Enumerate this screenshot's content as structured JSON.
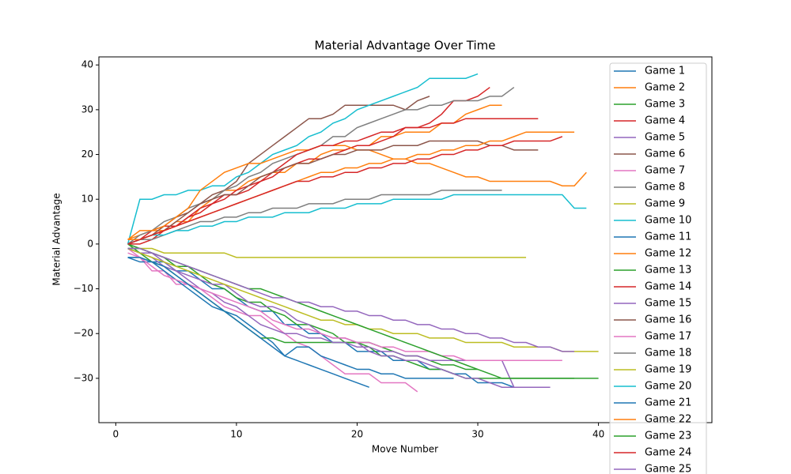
{
  "chart_data": {
    "type": "line",
    "title": "Material Advantage Over Time",
    "x_label": "Move Number",
    "y_label": "Material Advantage",
    "xlim": [
      -1.4,
      49.4
    ],
    "ylim": [
      -39.9,
      41.8
    ],
    "xticks": [
      0,
      10,
      20,
      30,
      40
    ],
    "yticks": [
      {
        "value": -30,
        "label": "−30"
      },
      {
        "value": -20,
        "label": "−20"
      },
      {
        "value": -10,
        "label": "−10"
      },
      0,
      10,
      20,
      30,
      40
    ],
    "legend": "upper right",
    "grid": false,
    "x": [
      1,
      2,
      3,
      4,
      5,
      6,
      7,
      8,
      9,
      10,
      11,
      12,
      13,
      14,
      15,
      16,
      17,
      18,
      19,
      20,
      21,
      22,
      23,
      24,
      25,
      26,
      27,
      28,
      29,
      30,
      31,
      32,
      33,
      34,
      35,
      36,
      37,
      38,
      39,
      40
    ],
    "series": [
      {
        "name": "Game 1",
        "color": "#1f77b4",
        "values": [
          -3,
          -3,
          -4,
          -4,
          -6,
          -6,
          -8,
          -10,
          -10,
          -12,
          -14,
          -15,
          -15,
          -18,
          -18,
          -20,
          -20,
          -22,
          -22,
          -24,
          -24,
          -24,
          -26,
          -26,
          -26,
          -28,
          -28,
          -29,
          -29,
          -31,
          -31,
          -31,
          -32,
          null,
          null,
          null,
          null,
          null,
          null,
          null
        ]
      },
      {
        "name": "Game 2",
        "color": "#ff7f0e",
        "values": [
          1,
          2,
          3,
          3,
          5,
          5,
          8,
          10,
          12,
          12,
          14,
          15,
          16,
          16,
          18,
          18,
          20,
          21,
          21,
          22,
          22,
          24,
          24,
          25,
          25,
          25,
          27,
          27,
          29,
          30,
          31,
          31,
          null,
          null,
          null,
          null,
          null,
          null,
          null,
          null
        ]
      },
      {
        "name": "Game 3",
        "color": "#2ca02c",
        "values": [
          0,
          -1,
          -2,
          -3,
          -5,
          -5,
          -7,
          -9,
          -10,
          -12,
          -13,
          -13,
          -15,
          -16,
          -18,
          -18,
          -19,
          -20,
          -22,
          -22,
          -23,
          -25,
          -25,
          -26,
          -27,
          -28,
          -28,
          -29,
          -30,
          -30,
          -30,
          -30,
          -30,
          -30,
          -30,
          -30,
          -30,
          -30,
          null,
          null
        ]
      },
      {
        "name": "Game 4",
        "color": "#d62728",
        "values": [
          0,
          1,
          3,
          4,
          4,
          6,
          8,
          9,
          11,
          11,
          12,
          14,
          15,
          17,
          18,
          19,
          19,
          20,
          21,
          22,
          22,
          23,
          24,
          26,
          26,
          27,
          29,
          32,
          32,
          33,
          35,
          null,
          null,
          null,
          null,
          null,
          null,
          null,
          null,
          null
        ]
      },
      {
        "name": "Game 5",
        "color": "#9467bd",
        "values": [
          -1,
          -2,
          -2,
          -4,
          -6,
          -7,
          -8,
          -9,
          -9,
          -11,
          -13,
          -14,
          -14,
          -15,
          -17,
          -18,
          -20,
          -21,
          -21,
          -22,
          -24,
          -25,
          -25,
          -26,
          -26,
          -27,
          -28,
          -29,
          -30,
          -30,
          -31,
          -32,
          -32,
          -32,
          -32,
          -32,
          null,
          null,
          null,
          null
        ]
      },
      {
        "name": "Game 6",
        "color": "#8c564b",
        "values": [
          1,
          1,
          2,
          4,
          6,
          7,
          9,
          11,
          12,
          14,
          18,
          20,
          22,
          24,
          26,
          28,
          28,
          29,
          31,
          31,
          31,
          31,
          31,
          30,
          32,
          33,
          null,
          null,
          null,
          null,
          null,
          null,
          null,
          null,
          null,
          null,
          null,
          null,
          null,
          null
        ]
      },
      {
        "name": "Game 7",
        "color": "#e377c2",
        "values": [
          -1,
          -3,
          -6,
          -6,
          -9,
          -9,
          -10,
          -12,
          -14,
          -15,
          -16,
          -16,
          -18,
          -20,
          -22,
          -23,
          -25,
          -27,
          -29,
          -29,
          -29,
          -31,
          -31,
          -31,
          -33,
          null,
          null,
          null,
          null,
          null,
          null,
          null,
          null,
          null,
          null,
          null,
          null,
          null,
          null,
          null
        ]
      },
      {
        "name": "Game 8",
        "color": "#7f7f7f",
        "values": [
          0,
          2,
          3,
          5,
          6,
          8,
          9,
          10,
          12,
          13,
          15,
          16,
          18,
          19,
          20,
          21,
          22,
          24,
          24,
          26,
          27,
          28,
          29,
          30,
          30,
          31,
          31,
          32,
          32,
          32,
          33,
          33,
          35,
          null,
          null,
          null,
          null,
          null,
          null,
          null
        ]
      },
      {
        "name": "Game 9",
        "color": "#bcbd22",
        "values": [
          -1,
          -1,
          -1,
          -2,
          -2,
          -2,
          -2,
          -2,
          -2,
          -3,
          -3,
          -3,
          -3,
          -3,
          -3,
          -3,
          -3,
          -3,
          -3,
          -3,
          -3,
          -3,
          -3,
          -3,
          -3,
          -3,
          -3,
          -3,
          -3,
          -3,
          -3,
          -3,
          -3,
          -3,
          null,
          null,
          null,
          null,
          null,
          null
        ]
      },
      {
        "name": "Game 10",
        "color": "#17becf",
        "values": [
          0,
          10,
          10,
          11,
          11,
          12,
          12,
          13,
          13,
          15,
          16,
          18,
          20,
          21,
          22,
          24,
          25,
          27,
          28,
          30,
          31,
          32,
          33,
          34,
          35,
          37,
          37,
          37,
          37,
          38,
          null,
          null,
          null,
          null,
          null,
          null,
          null,
          null,
          null,
          null
        ]
      },
      {
        "name": "Game 11",
        "color": "#1f77b4",
        "values": [
          -3,
          -4,
          -4,
          -6,
          -8,
          -10,
          -12,
          -14,
          -15,
          -16,
          -18,
          -20,
          -22,
          -25,
          -26,
          -27,
          -28,
          -29,
          -30,
          -31,
          -32,
          null,
          null,
          null,
          null,
          null,
          null,
          null,
          null,
          null,
          null,
          null,
          null,
          null,
          null,
          null,
          null,
          null,
          null,
          null
        ]
      },
      {
        "name": "Game 12",
        "color": "#ff7f0e",
        "values": [
          1,
          3,
          3,
          4,
          6,
          8,
          12,
          14,
          16,
          17,
          18,
          18,
          19,
          20,
          21,
          21,
          22,
          22,
          22,
          21,
          21,
          20,
          19,
          19,
          18,
          18,
          17,
          16,
          15,
          15,
          14,
          14,
          14,
          14,
          14,
          14,
          13,
          13,
          16,
          null
        ]
      },
      {
        "name": "Game 13",
        "color": "#2ca02c",
        "values": [
          0,
          -2,
          -4,
          -5,
          -7,
          -9,
          -11,
          -13,
          -15,
          -17,
          -19,
          -21,
          -21,
          -22,
          -22,
          -22,
          -22,
          -22,
          -22,
          -22,
          -22,
          -23,
          -24,
          -25,
          -25,
          -26,
          -27,
          -27,
          -28,
          -28,
          null,
          null,
          null,
          null,
          null,
          null,
          null,
          null,
          null,
          null
        ]
      },
      {
        "name": "Game 14",
        "color": "#d62728",
        "values": [
          0,
          0,
          1,
          3,
          4,
          6,
          7,
          9,
          10,
          12,
          13,
          14,
          16,
          18,
          20,
          21,
          22,
          22,
          23,
          23,
          24,
          25,
          25,
          26,
          26,
          26,
          27,
          27,
          28,
          28,
          28,
          28,
          28,
          28,
          28,
          null,
          null,
          null,
          null,
          null
        ]
      },
      {
        "name": "Game 15",
        "color": "#9467bd",
        "values": [
          -1,
          -2,
          -3,
          -5,
          -6,
          -8,
          -10,
          -11,
          -13,
          -14,
          -16,
          -18,
          -19,
          -20,
          -20,
          -21,
          -21,
          -22,
          -22,
          -23,
          -23,
          -24,
          -24,
          -25,
          -25,
          -26,
          -26,
          -26,
          -26,
          -26,
          -26,
          -26,
          -32,
          -32,
          -32,
          null,
          null,
          null,
          null,
          null
        ]
      },
      {
        "name": "Game 16",
        "color": "#8c564b",
        "values": [
          0,
          1,
          2,
          3,
          5,
          7,
          9,
          10,
          11,
          11,
          13,
          15,
          16,
          17,
          18,
          18,
          19,
          20,
          20,
          21,
          21,
          21,
          22,
          22,
          22,
          23,
          23,
          23,
          23,
          23,
          22,
          22,
          21,
          21,
          21,
          null,
          null,
          null,
          null,
          null
        ]
      },
      {
        "name": "Game 17",
        "color": "#e377c2",
        "values": [
          -2,
          -3,
          -5,
          -7,
          -8,
          -9,
          -10,
          -11,
          -12,
          -13,
          -14,
          -15,
          -17,
          -18,
          -19,
          -19,
          -20,
          -21,
          -21,
          -22,
          -22,
          -23,
          -23,
          -24,
          -24,
          -24,
          -25,
          -25,
          -26,
          -26,
          -26,
          -26,
          -26,
          -26,
          -26,
          -26,
          -26,
          null,
          null,
          null
        ]
      },
      {
        "name": "Game 18",
        "color": "#7f7f7f",
        "values": [
          0,
          1,
          1,
          2,
          3,
          4,
          5,
          5,
          6,
          6,
          7,
          7,
          8,
          8,
          8,
          9,
          9,
          9,
          10,
          10,
          10,
          11,
          11,
          11,
          11,
          11,
          12,
          12,
          12,
          12,
          12,
          12,
          null,
          null,
          null,
          null,
          null,
          null,
          null,
          null
        ]
      },
      {
        "name": "Game 19",
        "color": "#bcbd22",
        "values": [
          -1,
          -2,
          -3,
          -4,
          -5,
          -6,
          -7,
          -8,
          -9,
          -10,
          -11,
          -12,
          -13,
          -14,
          -15,
          -16,
          -17,
          -17,
          -18,
          -18,
          -19,
          -19,
          -20,
          -20,
          -20,
          -21,
          -21,
          -21,
          -22,
          -22,
          -22,
          -22,
          -23,
          -23,
          -23,
          -23,
          -24,
          -24,
          -24,
          -24
        ]
      },
      {
        "name": "Game 20",
        "color": "#17becf",
        "values": [
          0,
          1,
          2,
          2,
          3,
          3,
          4,
          4,
          5,
          5,
          6,
          6,
          6,
          7,
          7,
          7,
          8,
          8,
          8,
          9,
          9,
          9,
          10,
          10,
          10,
          10,
          10,
          11,
          11,
          11,
          11,
          11,
          11,
          11,
          11,
          11,
          11,
          8,
          8,
          null
        ]
      },
      {
        "name": "Game 21",
        "color": "#1f77b4",
        "values": [
          -3,
          -3,
          -4,
          -5,
          -7,
          -9,
          -11,
          -13,
          -15,
          -17,
          -19,
          -21,
          -23,
          -25,
          -23,
          -23,
          -25,
          -26,
          -27,
          -28,
          -28,
          -29,
          -29,
          -30,
          -30,
          -30,
          -30,
          -30,
          null,
          null,
          null,
          null,
          null,
          null,
          null,
          null,
          null,
          null,
          null,
          null
        ]
      },
      {
        "name": "Game 22",
        "color": "#ff7f0e",
        "values": [
          1,
          1,
          2,
          3,
          4,
          5,
          6,
          7,
          8,
          9,
          10,
          11,
          12,
          13,
          14,
          15,
          16,
          16,
          17,
          17,
          18,
          18,
          19,
          19,
          20,
          20,
          21,
          21,
          22,
          22,
          23,
          23,
          24,
          25,
          25,
          25,
          25,
          25,
          null,
          null
        ]
      },
      {
        "name": "Game 23",
        "color": "#2ca02c",
        "values": [
          -1,
          -1,
          -2,
          -3,
          -4,
          -5,
          -6,
          -7,
          -8,
          -9,
          -10,
          -10,
          -11,
          -12,
          -13,
          -14,
          -15,
          -16,
          -17,
          -18,
          -19,
          -20,
          -21,
          -22,
          -23,
          -24,
          -25,
          -26,
          -27,
          -28,
          -29,
          -30,
          -30,
          -30,
          -30,
          -30,
          -30,
          -30,
          -30,
          -30
        ]
      },
      {
        "name": "Game 24",
        "color": "#d62728",
        "values": [
          0,
          1,
          2,
          3,
          4,
          5,
          6,
          7,
          8,
          9,
          10,
          11,
          12,
          13,
          14,
          14,
          15,
          15,
          16,
          16,
          17,
          17,
          18,
          18,
          19,
          19,
          20,
          20,
          21,
          21,
          22,
          22,
          23,
          23,
          23,
          23,
          24,
          null,
          null,
          null
        ]
      },
      {
        "name": "Game 25",
        "color": "#9467bd",
        "values": [
          -1,
          -1,
          -2,
          -3,
          -4,
          -5,
          -6,
          -7,
          -8,
          -9,
          -10,
          -11,
          -12,
          -12,
          -13,
          -13,
          -14,
          -14,
          -15,
          -15,
          -16,
          -16,
          -17,
          -17,
          -18,
          -18,
          -19,
          -19,
          -20,
          -20,
          -21,
          -21,
          -22,
          -22,
          -23,
          -23,
          -24,
          -24,
          null,
          null
        ]
      }
    ]
  }
}
